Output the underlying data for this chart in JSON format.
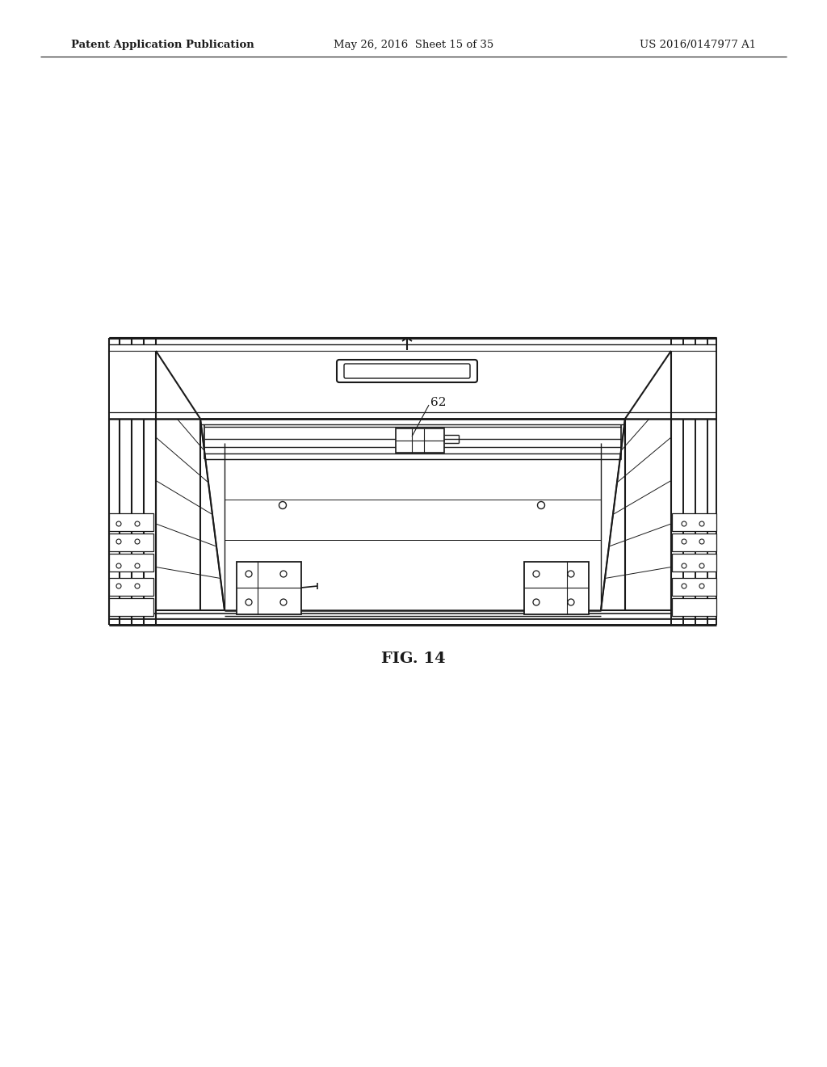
{
  "bg_color": "#ffffff",
  "line_color": "#1a1a1a",
  "header_left": "Patent Application Publication",
  "header_mid": "May 26, 2016  Sheet 15 of 35",
  "header_right": "US 2016/0147977 A1",
  "fig_label": "FIG. 14",
  "ref_label": "62",
  "fig_label_fontsize": 14,
  "header_fontsize": 9.5
}
